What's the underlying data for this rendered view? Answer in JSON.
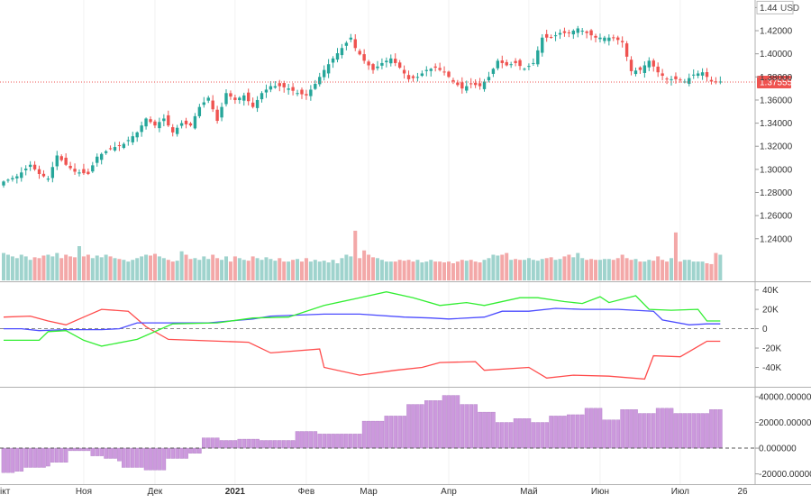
{
  "chart_data": [
    {
      "type": "candlestick",
      "panel": "price",
      "currency": "USD",
      "ylim": [
        1.225,
        1.445
      ],
      "y_ticks": [
        "1.44",
        "1.42000",
        "1.40000",
        "1.38000",
        "1.36000",
        "1.34000",
        "1.32000",
        "1.30000",
        "1.28000",
        "1.26000",
        "1.24000"
      ],
      "y_tick_values": [
        1.44,
        1.42,
        1.4,
        1.38,
        1.36,
        1.34,
        1.32,
        1.3,
        1.28,
        1.26,
        1.24
      ],
      "last_price": 1.37555,
      "last_price_label": "1.37555",
      "close_path": [
        [
          0,
          1.288
        ],
        [
          4,
          1.294
        ],
        [
          7,
          1.304
        ],
        [
          9,
          1.296
        ],
        [
          11,
          1.292
        ],
        [
          13,
          1.312
        ],
        [
          15,
          1.304
        ],
        [
          17,
          1.298
        ],
        [
          20,
          1.296
        ],
        [
          22,
          1.311
        ],
        [
          25,
          1.318
        ],
        [
          28,
          1.322
        ],
        [
          31,
          1.332
        ],
        [
          33,
          1.344
        ],
        [
          35,
          1.338
        ],
        [
          37,
          1.344
        ],
        [
          39,
          1.332
        ],
        [
          41,
          1.34
        ],
        [
          43,
          1.338
        ],
        [
          45,
          1.354
        ],
        [
          47,
          1.362
        ],
        [
          49,
          1.342
        ],
        [
          51,
          1.366
        ],
        [
          53,
          1.36
        ],
        [
          55,
          1.364
        ],
        [
          57,
          1.354
        ],
        [
          59,
          1.366
        ],
        [
          61,
          1.372
        ],
        [
          63,
          1.372
        ],
        [
          65,
          1.37
        ],
        [
          67,
          1.366
        ],
        [
          69,
          1.364
        ],
        [
          71,
          1.374
        ],
        [
          73,
          1.386
        ],
        [
          75,
          1.396
        ],
        [
          77,
          1.405
        ],
        [
          79,
          1.414
        ],
        [
          80,
          1.405
        ],
        [
          82,
          1.394
        ],
        [
          84,
          1.386
        ],
        [
          86,
          1.392
        ],
        [
          88,
          1.396
        ],
        [
          90,
          1.388
        ],
        [
          92,
          1.378
        ],
        [
          94,
          1.38
        ],
        [
          96,
          1.386
        ],
        [
          98,
          1.388
        ],
        [
          100,
          1.384
        ],
        [
          102,
          1.376
        ],
        [
          104,
          1.37
        ],
        [
          106,
          1.374
        ],
        [
          108,
          1.372
        ],
        [
          110,
          1.38
        ],
        [
          112,
          1.394
        ],
        [
          114,
          1.39
        ],
        [
          116,
          1.392
        ],
        [
          118,
          1.387
        ],
        [
          120,
          1.392
        ],
        [
          122,
          1.414
        ],
        [
          124,
          1.414
        ],
        [
          126,
          1.418
        ],
        [
          128,
          1.418
        ],
        [
          130,
          1.422
        ],
        [
          132,
          1.418
        ],
        [
          134,
          1.414
        ],
        [
          136,
          1.414
        ],
        [
          138,
          1.414
        ],
        [
          140,
          1.41
        ],
        [
          142,
          1.385
        ],
        [
          144,
          1.386
        ],
        [
          146,
          1.394
        ],
        [
          148,
          1.384
        ],
        [
          150,
          1.378
        ],
        [
          152,
          1.378
        ],
        [
          154,
          1.376
        ],
        [
          156,
          1.382
        ],
        [
          158,
          1.384
        ],
        [
          160,
          1.376
        ]
      ],
      "volume": [
        32,
        30,
        28,
        26,
        30,
        28,
        24,
        27,
        26,
        29,
        30,
        28,
        32,
        26,
        30,
        28,
        27,
        40,
        28,
        30,
        26,
        29,
        27,
        30,
        28,
        26,
        25,
        24,
        22,
        24,
        26,
        28,
        30,
        29,
        31,
        28,
        26,
        24,
        22,
        23,
        34,
        30,
        25,
        26,
        24,
        28,
        25,
        30,
        26,
        24,
        28,
        22,
        28,
        26,
        24,
        23,
        28,
        26,
        24,
        27,
        25,
        23,
        26,
        22,
        22,
        24,
        25,
        22,
        26,
        22,
        24,
        22,
        23,
        21,
        24,
        20,
        26,
        30,
        28,
        58,
        26,
        35,
        30,
        27,
        26,
        24,
        22,
        22,
        22,
        24,
        23,
        24,
        22,
        24,
        21,
        22,
        24,
        22,
        22,
        21,
        22,
        20,
        22,
        24,
        23,
        24,
        22,
        21,
        24,
        26,
        30,
        29,
        30,
        32,
        24,
        25,
        24,
        24,
        26,
        24,
        23,
        25,
        26,
        27,
        24,
        25,
        28,
        30,
        27,
        32,
        26,
        24,
        25,
        24,
        24,
        25,
        25,
        24,
        26,
        30,
        26,
        24,
        25,
        22,
        22,
        24,
        23,
        28,
        24,
        22,
        26,
        56,
        22,
        24,
        24,
        22,
        22,
        22,
        20,
        19
      ],
      "x_tick_labels": [
        "ікт",
        "Ноя",
        "Дек",
        "2021",
        "Фев",
        "Мар",
        "Апр",
        "Май",
        "Июн",
        "Июл",
        "26"
      ],
      "x_tick_index": [
        0,
        18,
        34,
        52,
        68,
        82,
        100,
        118,
        134,
        152,
        166
      ]
    },
    {
      "type": "line",
      "panel": "indicator",
      "ylim": [
        -60,
        48
      ],
      "y_ticks": [
        "40K",
        "20K",
        "0",
        "-20K",
        "-40K"
      ],
      "y_tick_values": [
        40,
        20,
        0,
        -20,
        -40
      ],
      "series": [
        {
          "color": "#ff4c4c",
          "step": [
            [
              0,
              12
            ],
            [
              6,
              13
            ],
            [
              10,
              8
            ],
            [
              14,
              4
            ],
            [
              18,
              12
            ],
            [
              22,
              20
            ],
            [
              28,
              18
            ],
            [
              32,
              2
            ],
            [
              37,
              -11
            ],
            [
              55,
              -14
            ],
            [
              60,
              -25
            ],
            [
              71,
              -21
            ],
            [
              72,
              -40
            ],
            [
              80,
              -48
            ],
            [
              88,
              -43
            ],
            [
              94,
              -40
            ],
            [
              98,
              -35
            ],
            [
              106,
              -34
            ],
            [
              108,
              -43
            ],
            [
              118,
              -40
            ],
            [
              122,
              -51
            ],
            [
              128,
              -48
            ],
            [
              136,
              -49
            ],
            [
              144,
              -52
            ],
            [
              146,
              -28
            ],
            [
              152,
              -29
            ],
            [
              158,
              -13
            ],
            [
              161,
              -13
            ]
          ]
        },
        {
          "color": "#4c4cff",
          "step": [
            [
              0,
              0
            ],
            [
              4,
              0
            ],
            [
              8,
              -2
            ],
            [
              14,
              -1
            ],
            [
              22,
              -1
            ],
            [
              26,
              0
            ],
            [
              30,
              6
            ],
            [
              38,
              6
            ],
            [
              46,
              6
            ],
            [
              56,
              10
            ],
            [
              60,
              13
            ],
            [
              72,
              15
            ],
            [
              80,
              15
            ],
            [
              90,
              12
            ],
            [
              96,
              11
            ],
            [
              100,
              10
            ],
            [
              108,
              12
            ],
            [
              112,
              18
            ],
            [
              118,
              18
            ],
            [
              124,
              21
            ],
            [
              130,
              20
            ],
            [
              138,
              20
            ],
            [
              146,
              18
            ],
            [
              148,
              9
            ],
            [
              154,
              4
            ],
            [
              158,
              5
            ],
            [
              161,
              5
            ]
          ]
        },
        {
          "color": "#33ee33",
          "step": [
            [
              0,
              -12
            ],
            [
              8,
              -12
            ],
            [
              10,
              -3
            ],
            [
              14,
              -2
            ],
            [
              18,
              -12
            ],
            [
              22,
              -18
            ],
            [
              30,
              -11
            ],
            [
              38,
              5
            ],
            [
              48,
              6
            ],
            [
              56,
              11
            ],
            [
              64,
              12
            ],
            [
              72,
              24
            ],
            [
              80,
              32
            ],
            [
              86,
              38
            ],
            [
              92,
              32
            ],
            [
              98,
              24
            ],
            [
              104,
              27
            ],
            [
              108,
              24
            ],
            [
              116,
              32
            ],
            [
              120,
              32
            ],
            [
              126,
              28
            ],
            [
              130,
              26
            ],
            [
              134,
              33
            ],
            [
              136,
              27
            ],
            [
              142,
              34
            ],
            [
              145,
              20
            ],
            [
              150,
              19
            ],
            [
              156,
              20
            ],
            [
              158,
              8
            ],
            [
              161,
              8
            ]
          ]
        }
      ]
    },
    {
      "type": "bar",
      "panel": "histogram",
      "ylim": [
        -28000,
        47000
      ],
      "y_ticks": [
        "40000.00000",
        "20000.000000",
        "0.000000",
        "-20000.00000"
      ],
      "y_tick_values": [
        40000,
        20000,
        0,
        -20000
      ],
      "bar_color": "#cc99dd",
      "values": [
        -19000,
        -19000,
        -19000,
        -18000,
        -18000,
        -15000,
        -15000,
        -15000,
        -15000,
        -15000,
        -14000,
        -11000,
        -11000,
        -11000,
        -11000,
        -2000,
        -2000,
        -2000,
        -2000,
        -2000,
        -6000,
        -6000,
        -6000,
        -8000,
        -8000,
        -8000,
        -10000,
        -15000,
        -15000,
        -15000,
        -15000,
        -15000,
        -17000,
        -17000,
        -17000,
        -17000,
        -17000,
        -8000,
        -8000,
        -8000,
        -8000,
        -8000,
        -4000,
        -4000,
        -4000,
        8000,
        8000,
        8000,
        8000,
        6000,
        6000,
        6000,
        6000,
        7000,
        7000,
        7000,
        7000,
        7000,
        6000,
        6000,
        6000,
        6000,
        6000,
        6000,
        6000,
        6000,
        13000,
        13000,
        13000,
        13000,
        13000,
        11000,
        11000,
        11000,
        11000,
        11000,
        11000,
        11000,
        11000,
        11000,
        11000,
        21000,
        21000,
        21000,
        21000,
        21000,
        25000,
        25000,
        25000,
        25000,
        25000,
        34000,
        34000,
        34000,
        34000,
        37000,
        37000,
        37000,
        37000,
        41000,
        41000,
        41000,
        41000,
        34000,
        34000,
        34000,
        34000,
        28000,
        28000,
        28000,
        28000,
        20000,
        20000,
        20000,
        20000,
        23000,
        23000,
        23000,
        23000,
        20000,
        20000,
        20000,
        20000,
        25000,
        25000,
        25000,
        25000,
        26000,
        26000,
        26000,
        26000,
        31000,
        31000,
        31000,
        31000,
        22000,
        22000,
        22000,
        22000,
        30000,
        30000,
        30000,
        30000,
        27000,
        27000,
        27000,
        27000,
        31000,
        31000,
        31000,
        31000,
        27000,
        27000,
        27000,
        27000,
        27000,
        27000,
        27000,
        27000,
        30000,
        30000,
        30000,
        30000,
        13000,
        13000,
        13000,
        13000,
        12000,
        12000,
        12000,
        12000,
        15000,
        15000,
        15000,
        6000
      ]
    }
  ],
  "colors": {
    "bull": "#26a69a",
    "bear": "#ef5350",
    "volume_bull": "#9fd3cd",
    "volume_bear": "#f3a8a8",
    "last_price_tag": "#ef5350",
    "indicator_red": "#ff4c4c",
    "indicator_blue": "#4c4cff",
    "indicator_green": "#33ee33",
    "histogram": "#cc99dd"
  }
}
